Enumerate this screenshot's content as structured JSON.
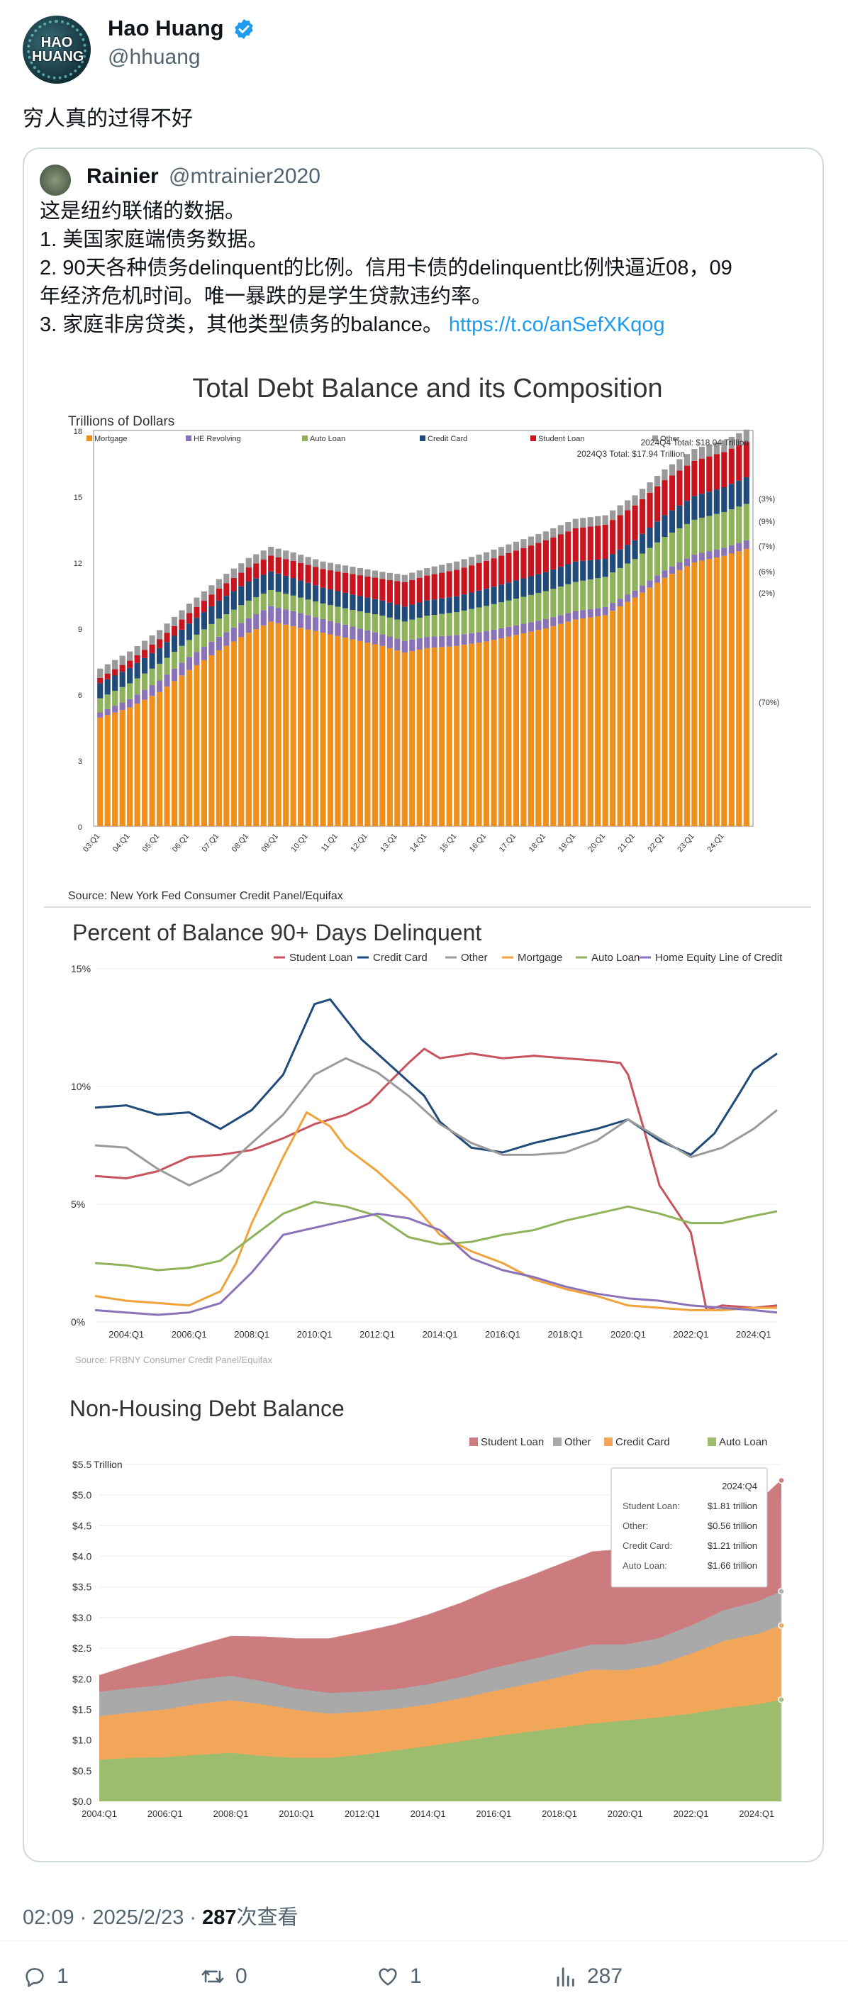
{
  "author": {
    "name": "Hao Huang",
    "handle": "@hhuang",
    "avatar_text": "HAO HUANG"
  },
  "tweet": {
    "text": "穷人真的过得不好"
  },
  "quote": {
    "name": "Rainier",
    "handle": "@mtrainier2020",
    "lines": [
      "这是纽约联储的数据。",
      "1. 美国家庭端债务数据。",
      "2. 90天各种债务delinquent的比例。信用卡债的delinquent比例快逼近08，09",
      "年经济危机时间。唯一暴跌的是学生贷款违约率。",
      "3. 家庭非房贷类，其他类型债务的balance。"
    ],
    "link": "https://t.co/anSefXKqog"
  },
  "chart_data": [
    {
      "type": "bar",
      "stacked": true,
      "title": "Total Debt Balance and its Composition",
      "ylabel": "Trillions of Dollars",
      "source": "Source: New York Fed Consumer Credit Panel/Equifax",
      "ylim": [
        0,
        18
      ],
      "yticks": [
        "0",
        "3",
        "6",
        "9",
        "12",
        "15",
        "18"
      ],
      "x_tick_labels": [
        "03:Q1",
        "04:Q1",
        "05:Q1",
        "06:Q1",
        "07:Q1",
        "08:Q1",
        "09:Q1",
        "10:Q1",
        "11:Q1",
        "12:Q1",
        "13:Q1",
        "14:Q1",
        "15:Q1",
        "16:Q1",
        "17:Q1",
        "18:Q1",
        "19:Q1",
        "20:Q1",
        "21:Q1",
        "22:Q1",
        "23:Q1",
        "24:Q1"
      ],
      "legend": [
        "Mortgage",
        "HE Revolving",
        "Auto Loan",
        "Credit Card",
        "Student Loan",
        "Other"
      ],
      "colors": {
        "Mortgage": "#f0901c",
        "HE Revolving": "#8a72b8",
        "Auto Loan": "#8fb35a",
        "Credit Card": "#1f4a7a",
        "Student Loan": "#c8141e",
        "Other": "#9a9a9a"
      },
      "annotations": [
        "2024Q4 Total: $18.04 Trillion",
        "2024Q3 Total: $17.94 Trillion"
      ],
      "right_labels": [
        "(3%)",
        "(9%)",
        "(7%)",
        "(6%)",
        "(2%)",
        "(70%)"
      ],
      "anchors": {
        "x": [
          2003.0,
          2004.0,
          2005.0,
          2006.0,
          2007.0,
          2008.0,
          2008.75,
          2009.5,
          2010.5,
          2011.5,
          2012.5,
          2013.25,
          2014.0,
          2015.0,
          2016.0,
          2017.0,
          2018.0,
          2019.0,
          2020.0,
          2021.0,
          2022.0,
          2023.0,
          2024.0,
          2024.75
        ],
        "Mortgage": [
          4.94,
          5.4,
          6.1,
          7.1,
          8.0,
          8.8,
          9.3,
          9.1,
          8.8,
          8.5,
          8.2,
          7.9,
          8.1,
          8.2,
          8.4,
          8.7,
          9.0,
          9.4,
          9.6,
          10.4,
          11.3,
          12.0,
          12.3,
          12.61
        ],
        "HE Revolving": [
          0.24,
          0.38,
          0.53,
          0.6,
          0.62,
          0.66,
          0.71,
          0.68,
          0.62,
          0.58,
          0.53,
          0.53,
          0.51,
          0.49,
          0.47,
          0.44,
          0.42,
          0.39,
          0.37,
          0.32,
          0.34,
          0.36,
          0.37,
          0.39
        ],
        "Auto Loan": [
          0.64,
          0.72,
          0.76,
          0.77,
          0.82,
          0.8,
          0.73,
          0.71,
          0.71,
          0.76,
          0.85,
          0.88,
          0.96,
          1.05,
          1.15,
          1.21,
          1.27,
          1.32,
          1.37,
          1.43,
          1.52,
          1.58,
          1.62,
          1.66
        ],
        "Credit Card": [
          0.69,
          0.7,
          0.71,
          0.75,
          0.82,
          0.87,
          0.85,
          0.8,
          0.72,
          0.7,
          0.68,
          0.68,
          0.7,
          0.72,
          0.78,
          0.83,
          0.87,
          0.93,
          0.82,
          0.86,
          0.99,
          1.08,
          1.13,
          1.21
        ],
        "Student Loan": [
          0.24,
          0.33,
          0.4,
          0.48,
          0.55,
          0.64,
          0.72,
          0.78,
          0.85,
          0.93,
          0.99,
          1.11,
          1.13,
          1.2,
          1.27,
          1.36,
          1.44,
          1.51,
          1.55,
          1.58,
          1.59,
          1.6,
          1.6,
          1.61
        ],
        "Other": [
          0.42,
          0.42,
          0.42,
          0.42,
          0.43,
          0.43,
          0.4,
          0.38,
          0.34,
          0.33,
          0.32,
          0.33,
          0.34,
          0.38,
          0.39,
          0.4,
          0.41,
          0.43,
          0.43,
          0.46,
          0.49,
          0.54,
          0.53,
          0.56
        ]
      }
    },
    {
      "type": "line",
      "title": "Percent of Balance 90+ Days Delinquent",
      "source": "Source: FRBNY Consumer Credit Panel/Equifax",
      "ylim": [
        0,
        15
      ],
      "yticks": [
        "0%",
        "5%",
        "10%",
        "15%"
      ],
      "x_tick_labels": [
        "2004:Q1",
        "2006:Q1",
        "2008:Q1",
        "2010:Q1",
        "2012:Q1",
        "2014:Q1",
        "2016:Q1",
        "2018:Q1",
        "2020:Q1",
        "2022:Q1",
        "2024:Q1"
      ],
      "series": [
        {
          "name": "Student Loan",
          "color": "#c8525e",
          "x": [
            2003.0,
            2004.0,
            2005.0,
            2006.0,
            2007.0,
            2008.0,
            2009.0,
            2010.0,
            2011.0,
            2011.75,
            2012.25,
            2013.0,
            2013.5,
            2014.0,
            2015.0,
            2016.0,
            2017.0,
            2018.0,
            2019.0,
            2019.75,
            2020.0,
            2020.5,
            2021.0,
            2022.0,
            2022.5,
            2023.0,
            2024.0,
            2024.75
          ],
          "values": [
            6.2,
            6.1,
            6.4,
            7.0,
            7.1,
            7.3,
            7.8,
            8.4,
            8.8,
            9.3,
            10.0,
            11.0,
            11.6,
            11.2,
            11.4,
            11.2,
            11.3,
            11.2,
            11.1,
            11.0,
            10.5,
            8.2,
            5.8,
            3.8,
            0.5,
            0.7,
            0.6,
            0.7
          ]
        },
        {
          "name": "Credit Card",
          "color": "#1f4a7a",
          "x": [
            2003.0,
            2004.0,
            2005.0,
            2006.0,
            2007.0,
            2008.0,
            2009.0,
            2010.0,
            2010.5,
            2011.5,
            2012.5,
            2013.5,
            2014.0,
            2015.0,
            2016.0,
            2017.0,
            2018.0,
            2019.0,
            2020.0,
            2021.0,
            2022.0,
            2022.75,
            2023.5,
            2024.0,
            2024.75
          ],
          "values": [
            9.1,
            9.2,
            8.8,
            8.9,
            8.2,
            9.0,
            10.5,
            13.5,
            13.7,
            12.0,
            10.8,
            9.6,
            8.5,
            7.4,
            7.2,
            7.6,
            7.9,
            8.2,
            8.6,
            7.7,
            7.1,
            8.0,
            9.6,
            10.7,
            11.4
          ]
        },
        {
          "name": "Other",
          "color": "#9a9a9a",
          "x": [
            2003.0,
            2004.0,
            2005.0,
            2006.0,
            2007.0,
            2008.0,
            2009.0,
            2010.0,
            2011.0,
            2012.0,
            2013.0,
            2014.0,
            2015.0,
            2016.0,
            2017.0,
            2018.0,
            2019.0,
            2020.0,
            2021.0,
            2022.0,
            2023.0,
            2024.0,
            2024.75
          ],
          "values": [
            7.5,
            7.4,
            6.5,
            5.8,
            6.4,
            7.6,
            8.8,
            10.5,
            11.2,
            10.6,
            9.6,
            8.4,
            7.6,
            7.1,
            7.1,
            7.2,
            7.7,
            8.6,
            7.8,
            7.0,
            7.4,
            8.2,
            9.0
          ]
        },
        {
          "name": "Mortgage",
          "color": "#f0a33a",
          "x": [
            2003.0,
            2004.0,
            2005.0,
            2006.0,
            2007.0,
            2007.5,
            2008.0,
            2009.0,
            2009.75,
            2010.5,
            2011.0,
            2012.0,
            2013.0,
            2014.0,
            2015.0,
            2016.0,
            2017.0,
            2018.0,
            2019.0,
            2020.0,
            2021.0,
            2022.0,
            2023.0,
            2024.0,
            2024.75
          ],
          "values": [
            1.1,
            0.9,
            0.8,
            0.7,
            1.3,
            2.5,
            4.2,
            7.0,
            8.9,
            8.3,
            7.4,
            6.4,
            5.2,
            3.7,
            3.0,
            2.5,
            1.8,
            1.4,
            1.1,
            0.7,
            0.6,
            0.5,
            0.5,
            0.6,
            0.6
          ]
        },
        {
          "name": "Auto Loan",
          "color": "#8fb35a",
          "x": [
            2003.0,
            2004.0,
            2005.0,
            2006.0,
            2007.0,
            2008.0,
            2009.0,
            2010.0,
            2011.0,
            2012.0,
            2013.0,
            2014.0,
            2015.0,
            2016.0,
            2017.0,
            2018.0,
            2019.0,
            2020.0,
            2021.0,
            2022.0,
            2023.0,
            2024.0,
            2024.75
          ],
          "values": [
            2.5,
            2.4,
            2.2,
            2.3,
            2.6,
            3.6,
            4.6,
            5.1,
            4.9,
            4.5,
            3.6,
            3.3,
            3.4,
            3.7,
            3.9,
            4.3,
            4.6,
            4.9,
            4.6,
            4.2,
            4.2,
            4.5,
            4.7
          ]
        },
        {
          "name": "Home Equity Line of Credit",
          "color": "#8a72b8",
          "x": [
            2003.0,
            2004.0,
            2005.0,
            2006.0,
            2007.0,
            2008.0,
            2009.0,
            2010.0,
            2011.0,
            2012.0,
            2013.0,
            2014.0,
            2015.0,
            2016.0,
            2017.0,
            2018.0,
            2019.0,
            2020.0,
            2021.0,
            2022.0,
            2023.0,
            2024.0,
            2024.75
          ],
          "values": [
            0.5,
            0.4,
            0.3,
            0.4,
            0.8,
            2.1,
            3.7,
            4.0,
            4.3,
            4.6,
            4.4,
            3.9,
            2.7,
            2.2,
            1.9,
            1.5,
            1.2,
            1.0,
            0.9,
            0.7,
            0.6,
            0.5,
            0.4
          ]
        }
      ]
    },
    {
      "type": "area",
      "stacked": true,
      "title": "Non-Housing Debt Balance",
      "ylabel": "Trillion",
      "ylim": [
        0,
        5.5
      ],
      "yticks": [
        "$0.0",
        "$0.5",
        "$1.0",
        "$1.5",
        "$2.0",
        "$2.5",
        "$3.0",
        "$3.5",
        "$4.0",
        "$4.5",
        "$5.0",
        "$5.5"
      ],
      "x_tick_labels": [
        "2004:Q1",
        "2006:Q1",
        "2008:Q1",
        "2010:Q1",
        "2012:Q1",
        "2014:Q1",
        "2016:Q1",
        "2018:Q1",
        "2020:Q1",
        "2022:Q1",
        "2024:Q1"
      ],
      "x": [
        2004.0,
        2005.0,
        2006.0,
        2007.0,
        2008.0,
        2009.0,
        2010.0,
        2011.0,
        2012.0,
        2013.0,
        2014.0,
        2015.0,
        2016.0,
        2017.0,
        2018.0,
        2019.0,
        2020.0,
        2021.0,
        2022.0,
        2023.0,
        2024.0,
        2024.75
      ],
      "series": [
        {
          "name": "Auto Loan",
          "color": "#9cbc6e",
          "values": [
            0.68,
            0.71,
            0.72,
            0.76,
            0.79,
            0.74,
            0.71,
            0.71,
            0.76,
            0.83,
            0.9,
            0.98,
            1.06,
            1.13,
            1.2,
            1.27,
            1.32,
            1.37,
            1.43,
            1.52,
            1.58,
            1.66
          ]
        },
        {
          "name": "Credit Card",
          "color": "#f2a65a",
          "values": [
            0.71,
            0.74,
            0.78,
            0.83,
            0.86,
            0.84,
            0.78,
            0.72,
            0.7,
            0.68,
            0.68,
            0.7,
            0.74,
            0.78,
            0.83,
            0.88,
            0.82,
            0.86,
            0.98,
            1.1,
            1.15,
            1.21
          ]
        },
        {
          "name": "Other",
          "color": "#a9a9a9",
          "values": [
            0.4,
            0.4,
            0.4,
            0.4,
            0.4,
            0.38,
            0.35,
            0.34,
            0.33,
            0.32,
            0.33,
            0.35,
            0.38,
            0.39,
            0.4,
            0.41,
            0.42,
            0.43,
            0.46,
            0.5,
            0.53,
            0.56
          ]
        },
        {
          "name": "Student Loan",
          "color": "#cc7b7e",
          "values": [
            0.26,
            0.37,
            0.48,
            0.55,
            0.64,
            0.72,
            0.81,
            0.88,
            0.97,
            1.05,
            1.13,
            1.2,
            1.28,
            1.35,
            1.43,
            1.51,
            1.55,
            1.58,
            1.59,
            1.6,
            1.6,
            1.81
          ]
        }
      ],
      "tooltip": {
        "title": "2024:Q4",
        "rows": [
          {
            "label": "Student Loan:",
            "value": "$1.81 trillion"
          },
          {
            "label": "Other:",
            "value": "$0.56 trillion"
          },
          {
            "label": "Credit Card:",
            "value": "$1.21 trillion"
          },
          {
            "label": "Auto Loan:",
            "value": "$1.66 trillion"
          }
        ]
      }
    }
  ],
  "footer": {
    "time": "02:09 · 2025/2/23 · ",
    "views_count": "287",
    "views_label": "次查看"
  },
  "actions": {
    "replies": "1",
    "retweets": "0",
    "likes": "1",
    "views": "287"
  }
}
